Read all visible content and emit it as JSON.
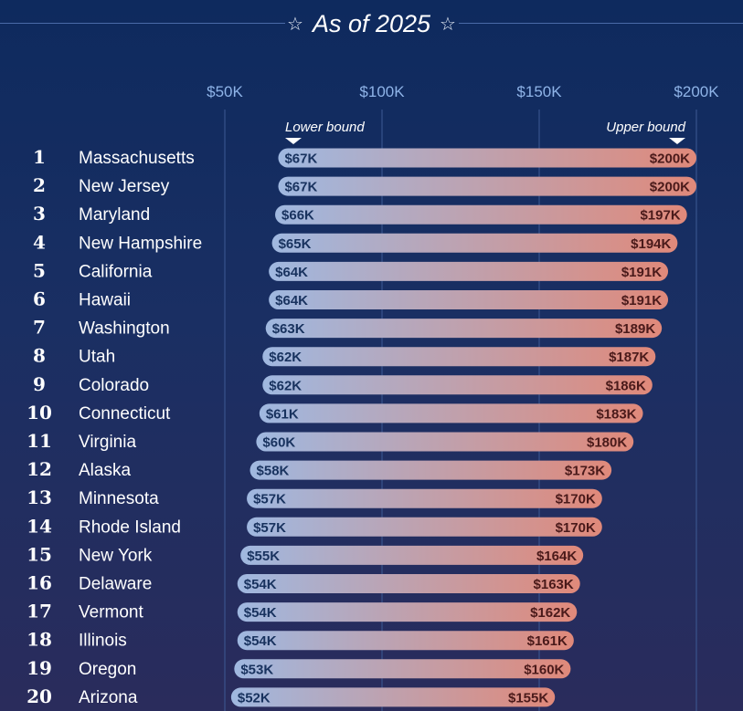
{
  "title": "As of 2025",
  "title_star": "☆",
  "colors": {
    "bar_low": "#9fb8e0",
    "bar_high": "#e0897a",
    "grid": "#3d5a95",
    "tick": "#8fb4e8"
  },
  "chart_data": {
    "type": "range-bar",
    "x_ticks": [
      "$50K",
      "$100K",
      "$150K",
      "$200K"
    ],
    "x_tick_values": [
      50,
      100,
      150,
      200
    ],
    "xlim": [
      50,
      200
    ],
    "lower_label": "Lower bound",
    "upper_label": "Upper bound",
    "rows": [
      {
        "rank": "1",
        "state": "Massachusetts",
        "low": 67,
        "high": 200,
        "low_label": "$67K",
        "high_label": "$200K"
      },
      {
        "rank": "2",
        "state": "New Jersey",
        "low": 67,
        "high": 200,
        "low_label": "$67K",
        "high_label": "$200K"
      },
      {
        "rank": "3",
        "state": "Maryland",
        "low": 66,
        "high": 197,
        "low_label": "$66K",
        "high_label": "$197K"
      },
      {
        "rank": "4",
        "state": "New Hampshire",
        "low": 65,
        "high": 194,
        "low_label": "$65K",
        "high_label": "$194K"
      },
      {
        "rank": "5",
        "state": "California",
        "low": 64,
        "high": 191,
        "low_label": "$64K",
        "high_label": "$191K"
      },
      {
        "rank": "6",
        "state": "Hawaii",
        "low": 64,
        "high": 191,
        "low_label": "$64K",
        "high_label": "$191K"
      },
      {
        "rank": "7",
        "state": "Washington",
        "low": 63,
        "high": 189,
        "low_label": "$63K",
        "high_label": "$189K"
      },
      {
        "rank": "8",
        "state": "Utah",
        "low": 62,
        "high": 187,
        "low_label": "$62K",
        "high_label": "$187K"
      },
      {
        "rank": "9",
        "state": "Colorado",
        "low": 62,
        "high": 186,
        "low_label": "$62K",
        "high_label": "$186K"
      },
      {
        "rank": "10",
        "state": "Connecticut",
        "low": 61,
        "high": 183,
        "low_label": "$61K",
        "high_label": "$183K"
      },
      {
        "rank": "11",
        "state": "Virginia",
        "low": 60,
        "high": 180,
        "low_label": "$60K",
        "high_label": "$180K"
      },
      {
        "rank": "12",
        "state": "Alaska",
        "low": 58,
        "high": 173,
        "low_label": "$58K",
        "high_label": "$173K"
      },
      {
        "rank": "13",
        "state": "Minnesota",
        "low": 57,
        "high": 170,
        "low_label": "$57K",
        "high_label": "$170K"
      },
      {
        "rank": "14",
        "state": "Rhode Island",
        "low": 57,
        "high": 170,
        "low_label": "$57K",
        "high_label": "$170K"
      },
      {
        "rank": "15",
        "state": "New York",
        "low": 55,
        "high": 164,
        "low_label": "$55K",
        "high_label": "$164K"
      },
      {
        "rank": "16",
        "state": "Delaware",
        "low": 54,
        "high": 163,
        "low_label": "$54K",
        "high_label": "$163K"
      },
      {
        "rank": "17",
        "state": "Vermont",
        "low": 54,
        "high": 162,
        "low_label": "$54K",
        "high_label": "$162K"
      },
      {
        "rank": "18",
        "state": "Illinois",
        "low": 54,
        "high": 161,
        "low_label": "$54K",
        "high_label": "$161K"
      },
      {
        "rank": "19",
        "state": "Oregon",
        "low": 53,
        "high": 160,
        "low_label": "$53K",
        "high_label": "$160K"
      },
      {
        "rank": "20",
        "state": "Arizona",
        "low": 52,
        "high": 155,
        "low_label": "$52K",
        "high_label": "$155K"
      }
    ]
  }
}
